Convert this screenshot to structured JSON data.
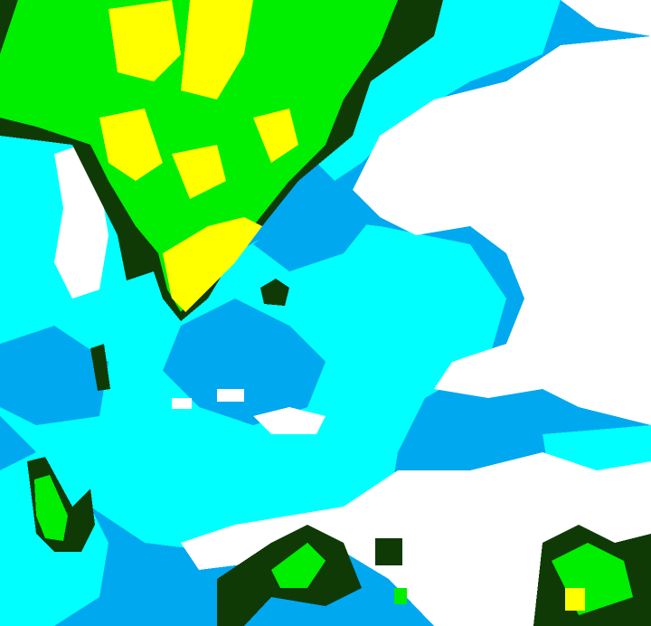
{
  "map": {
    "type": "classified raster image",
    "legend": "none shown",
    "colors": {
      "clear": "#ffffff",
      "blue": "#00a8f0",
      "cyan": "#00ffff",
      "dark_green": "#0f3a06",
      "green": "#00ee00",
      "yellow": "#ffff00"
    }
  }
}
